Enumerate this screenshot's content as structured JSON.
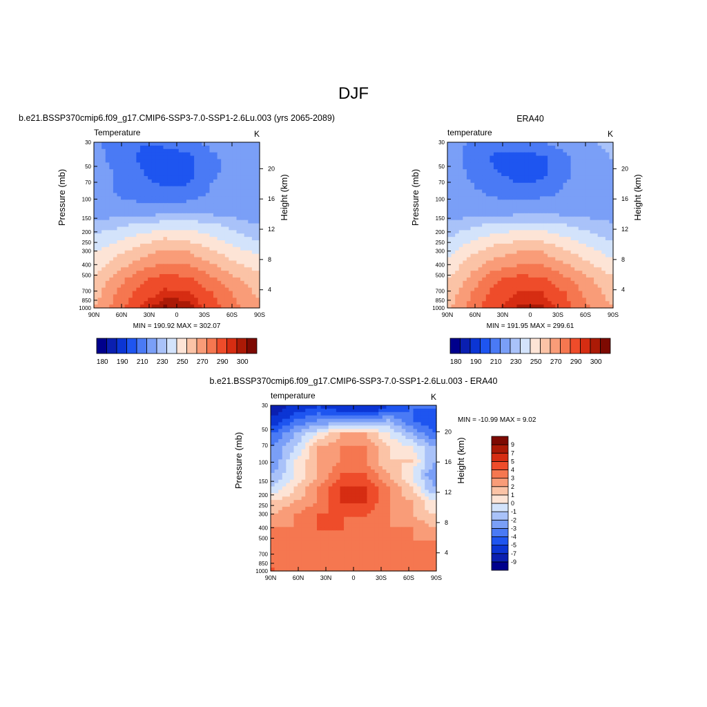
{
  "figure": {
    "title": "DJF"
  },
  "chart_data": [
    {
      "id": "model",
      "type": "heatmap",
      "title": "b.e21.BSSP370cmip6.f09_g17.CMIP6-SSP3-7.0-SSP1-2.6Lu.003 (yrs 2065-2089)",
      "left_label": "Temperature",
      "units": "K",
      "ylabel": "Pressure (mb)",
      "ylabel_right": "Height (km)",
      "x_ticks": [
        "90N",
        "60N",
        "30N",
        "0",
        "30S",
        "60S",
        "90S"
      ],
      "x_tick_values": [
        90,
        60,
        30,
        0,
        -30,
        -60,
        -90
      ],
      "y_ticks": [
        "30",
        "50",
        "70",
        "100",
        "150",
        "200",
        "250",
        "300",
        "400",
        "500",
        "700",
        "850",
        "1000"
      ],
      "y_tick_values": [
        30,
        50,
        70,
        100,
        150,
        200,
        250,
        300,
        400,
        500,
        700,
        850,
        1000
      ],
      "y_ticks_right": [
        "20",
        "16",
        "12",
        "8",
        "4"
      ],
      "y_tick_right_values": [
        20,
        16,
        12,
        8,
        4
      ],
      "ylim": [
        1000,
        30
      ],
      "log_y": true,
      "min_max": "MIN = 190.92  MAX = 302.07",
      "colorbar": {
        "orientation": "horizontal",
        "labels": [
          "180",
          "190",
          "210",
          "230",
          "250",
          "270",
          "290",
          "300"
        ],
        "levels": [
          180,
          185,
          190,
          200,
          210,
          220,
          230,
          240,
          250,
          260,
          270,
          280,
          290,
          295,
          300
        ],
        "colors": [
          "#00008c",
          "#0a1fb0",
          "#0b35d4",
          "#1e55f0",
          "#4a7af5",
          "#7a9ff7",
          "#a9c2f9",
          "#d3e3fb",
          "#fde4d6",
          "#fbc3a6",
          "#f99c78",
          "#f57750",
          "#ee4c2a",
          "#d62d12",
          "#ab1a06",
          "#7d0a02"
        ]
      },
      "field": [
        [
          212,
          204,
          200,
          202,
          206,
          212,
          216,
          218
        ],
        [
          213,
          206,
          198,
          194,
          196,
          208,
          214,
          216
        ],
        [
          214,
          208,
          200,
          193,
          196,
          208,
          213,
          214
        ],
        [
          214,
          208,
          204,
          198,
          200,
          210,
          214,
          215
        ],
        [
          214,
          210,
          208,
          206,
          208,
          212,
          214,
          215
        ],
        [
          212,
          214,
          214,
          216,
          217,
          216,
          214,
          212
        ],
        [
          225,
          228,
          232,
          236,
          236,
          232,
          226,
          220
        ],
        [
          232,
          238,
          244,
          250,
          248,
          242,
          234,
          228
        ],
        [
          240,
          248,
          256,
          262,
          260,
          252,
          244,
          238
        ],
        [
          246,
          256,
          266,
          272,
          270,
          262,
          252,
          246
        ],
        [
          252,
          266,
          278,
          284,
          282,
          272,
          262,
          254
        ],
        [
          256,
          272,
          284,
          292,
          290,
          280,
          268,
          258
        ],
        [
          260,
          276,
          290,
          300,
          298,
          284,
          272,
          262
        ]
      ]
    },
    {
      "id": "obs",
      "type": "heatmap",
      "title": "ERA40",
      "left_label": "temperature",
      "units": "K",
      "ylabel": "Pressure (mb)",
      "ylabel_right": "Height (km)",
      "x_ticks": [
        "90N",
        "60N",
        "30N",
        "0",
        "30S",
        "60S",
        "90S"
      ],
      "x_tick_values": [
        90,
        60,
        30,
        0,
        -30,
        -60,
        -90
      ],
      "y_ticks": [
        "30",
        "50",
        "70",
        "100",
        "150",
        "200",
        "250",
        "300",
        "400",
        "500",
        "700",
        "850",
        "1000"
      ],
      "y_tick_values": [
        30,
        50,
        70,
        100,
        150,
        200,
        250,
        300,
        400,
        500,
        700,
        850,
        1000
      ],
      "y_ticks_right": [
        "20",
        "16",
        "12",
        "8",
        "4"
      ],
      "y_tick_right_values": [
        20,
        16,
        12,
        8,
        4
      ],
      "ylim": [
        1000,
        30
      ],
      "log_y": true,
      "min_max": "MIN = 191.95  MAX = 299.61",
      "colorbar": {
        "orientation": "horizontal",
        "labels": [
          "180",
          "190",
          "210",
          "230",
          "250",
          "270",
          "290",
          "300"
        ],
        "levels": [
          180,
          185,
          190,
          200,
          210,
          220,
          230,
          240,
          250,
          260,
          270,
          280,
          290,
          295,
          300
        ],
        "colors": [
          "#00008c",
          "#0a1fb0",
          "#0b35d4",
          "#1e55f0",
          "#4a7af5",
          "#7a9ff7",
          "#a9c2f9",
          "#d3e3fb",
          "#fde4d6",
          "#fbc3a6",
          "#f99c78",
          "#f57750",
          "#ee4c2a",
          "#d62d12",
          "#ab1a06",
          "#7d0a02"
        ]
      },
      "field": [
        [
          214,
          208,
          204,
          204,
          208,
          214,
          218,
          222
        ],
        [
          214,
          206,
          198,
          196,
          198,
          208,
          216,
          220
        ],
        [
          214,
          208,
          200,
          194,
          196,
          208,
          214,
          218
        ],
        [
          214,
          210,
          206,
          200,
          202,
          210,
          214,
          216
        ],
        [
          214,
          212,
          210,
          208,
          210,
          212,
          214,
          215
        ],
        [
          212,
          214,
          214,
          216,
          217,
          216,
          214,
          212
        ],
        [
          224,
          228,
          232,
          234,
          234,
          230,
          226,
          222
        ],
        [
          230,
          238,
          244,
          248,
          248,
          242,
          234,
          228
        ],
        [
          238,
          248,
          256,
          260,
          260,
          252,
          244,
          236
        ],
        [
          244,
          256,
          266,
          270,
          270,
          262,
          252,
          244
        ],
        [
          250,
          264,
          278,
          284,
          282,
          272,
          262,
          252
        ],
        [
          254,
          270,
          284,
          290,
          290,
          280,
          266,
          256
        ],
        [
          258,
          274,
          288,
          296,
          296,
          284,
          270,
          260
        ]
      ]
    },
    {
      "id": "diff",
      "type": "heatmap",
      "title": "b.e21.BSSP370cmip6.f09_g17.CMIP6-SSP3-7.0-SSP1-2.6Lu.003 - ERA40",
      "left_label": "temperature",
      "units": "K",
      "ylabel": "Pressure (mb)",
      "ylabel_right": "Height (km)",
      "x_ticks": [
        "90N",
        "60N",
        "30N",
        "0",
        "30S",
        "60S",
        "90S"
      ],
      "x_tick_values": [
        90,
        60,
        30,
        0,
        -30,
        -60,
        -90
      ],
      "y_ticks": [
        "30",
        "50",
        "70",
        "100",
        "150",
        "200",
        "250",
        "300",
        "400",
        "500",
        "700",
        "850",
        "1000"
      ],
      "y_tick_values": [
        30,
        50,
        70,
        100,
        150,
        200,
        250,
        300,
        400,
        500,
        700,
        850,
        1000
      ],
      "y_ticks_right": [
        "20",
        "16",
        "12",
        "8",
        "4"
      ],
      "y_tick_right_values": [
        20,
        16,
        12,
        8,
        4
      ],
      "ylim": [
        1000,
        30
      ],
      "log_y": true,
      "min_max": "MIN = -10.99  MAX =   9.02",
      "colorbar": {
        "orientation": "vertical",
        "labels": [
          "9",
          "7",
          "5",
          "4",
          "3",
          "2",
          "1",
          "0",
          "-1",
          "-2",
          "-3",
          "-4",
          "-5",
          "-7",
          "-9"
        ],
        "levels": [
          -9,
          -7,
          -5,
          -4,
          -3,
          -2,
          -1,
          0,
          1,
          2,
          3,
          4,
          5,
          7,
          9
        ],
        "colors": [
          "#00008c",
          "#0a1fb0",
          "#0b35d4",
          "#1e55f0",
          "#4a7af5",
          "#7a9ff7",
          "#a9c2f9",
          "#d3e3fb",
          "#fde4d6",
          "#fbc3a6",
          "#f99c78",
          "#f57750",
          "#ee4c2a",
          "#d62d12",
          "#ab1a06",
          "#7d0a02"
        ]
      },
      "field": [
        [
          -9,
          -6,
          -5,
          -6,
          -7,
          -5,
          -4,
          -4
        ],
        [
          -6,
          -4,
          -3,
          -3,
          -3,
          -2,
          -4,
          -5
        ],
        [
          -4,
          -2,
          0,
          2,
          2,
          0,
          -2,
          -4
        ],
        [
          -3,
          -1,
          2,
          3,
          3,
          1,
          0,
          -2
        ],
        [
          -3,
          0,
          2,
          3,
          3,
          1,
          1,
          -2
        ],
        [
          -2,
          0,
          2,
          4,
          4,
          2,
          0,
          -3
        ],
        [
          -1,
          1,
          3,
          5,
          5,
          3,
          1,
          -2
        ],
        [
          1,
          2,
          3,
          5,
          5,
          3,
          2,
          0
        ],
        [
          2,
          3,
          4,
          4,
          4,
          3,
          2,
          1
        ],
        [
          3,
          3,
          4,
          4,
          3,
          3,
          3,
          2
        ],
        [
          3,
          3,
          3,
          3,
          3,
          3,
          3,
          3
        ],
        [
          3,
          3,
          3,
          3,
          3,
          3,
          3,
          3
        ],
        [
          4,
          3,
          3,
          3,
          3,
          3,
          3,
          3
        ]
      ]
    }
  ]
}
